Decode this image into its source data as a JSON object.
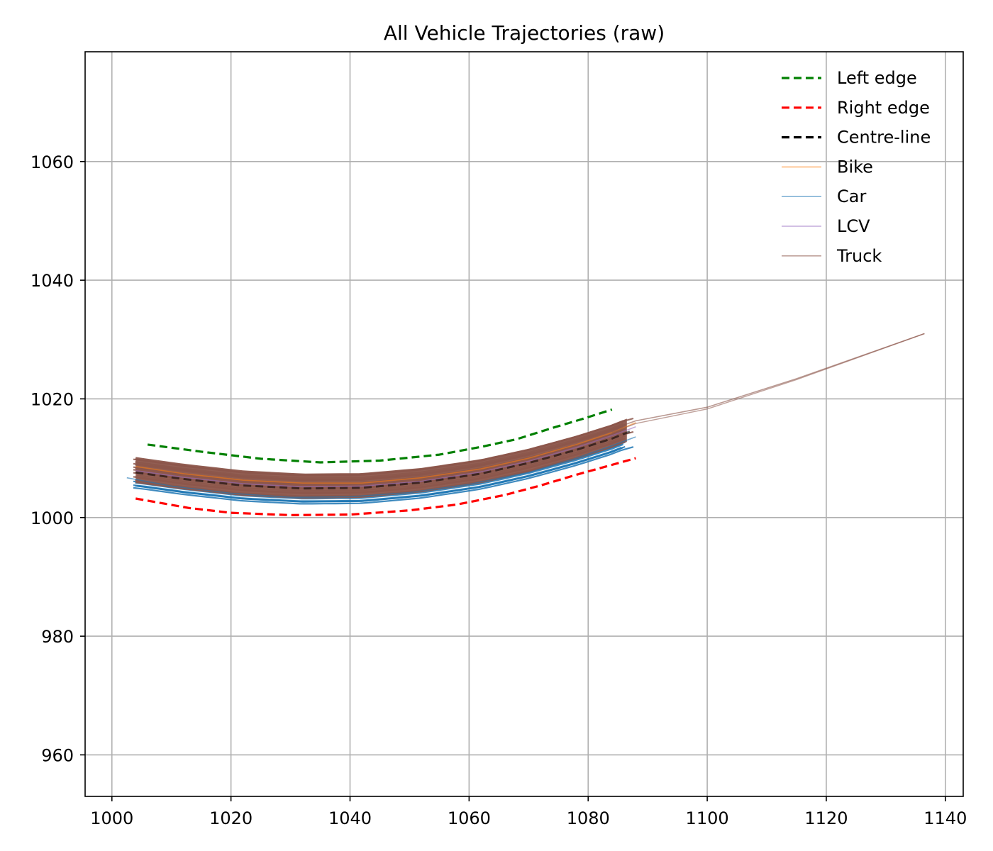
{
  "chart_data": {
    "type": "line",
    "title": "All Vehicle Trajectories (raw)",
    "xlabel": "",
    "ylabel": "",
    "xlim": [
      995.5,
      1143.0
    ],
    "ylim": [
      953.0,
      1078.5
    ],
    "xticks": [
      1000,
      1020,
      1040,
      1060,
      1080,
      1100,
      1120,
      1140
    ],
    "yticks": [
      960,
      980,
      1000,
      1020,
      1040,
      1060
    ],
    "grid": true,
    "legend_position": "top-right",
    "colors": {
      "left_edge": "#008000",
      "right_edge": "#ff0000",
      "centre_line": "#000000",
      "bike": "#ff7f0e",
      "car": "#1f77b4",
      "lcv": "#9467bd",
      "truck": "#8c564b"
    },
    "legend": [
      {
        "label": "Left edge",
        "style": "dashed",
        "color": "#008000"
      },
      {
        "label": "Right edge",
        "style": "dashed",
        "color": "#ff0000"
      },
      {
        "label": "Centre-line",
        "style": "dashed",
        "color": "#000000"
      },
      {
        "label": "Bike",
        "style": "solid",
        "color": "#ff7f0e"
      },
      {
        "label": "Car",
        "style": "solid",
        "color": "#1f77b4"
      },
      {
        "label": "LCV",
        "style": "solid",
        "color": "#9467bd"
      },
      {
        "label": "Truck",
        "style": "solid",
        "color": "#8c564b"
      }
    ],
    "series": [
      {
        "name": "Left edge",
        "x": [
          1006,
          1015,
          1025,
          1035,
          1045,
          1055,
          1062,
          1068,
          1074,
          1079,
          1084
        ],
        "y": [
          1012.3,
          1011.1,
          1009.9,
          1009.3,
          1009.6,
          1010.6,
          1011.9,
          1013.2,
          1015.1,
          1016.6,
          1018.2
        ]
      },
      {
        "name": "Right edge",
        "x": [
          1004,
          1013,
          1020,
          1030,
          1040,
          1050,
          1058,
          1066,
          1072,
          1078,
          1083,
          1088
        ],
        "y": [
          1003.2,
          1001.6,
          1000.8,
          1000.4,
          1000.5,
          1001.2,
          1002.2,
          1003.8,
          1005.4,
          1007.2,
          1008.6,
          1010.0
        ]
      },
      {
        "name": "Centre-line",
        "x": [
          1004,
          1012,
          1022,
          1032,
          1042,
          1052,
          1062,
          1070,
          1078,
          1084,
          1087
        ],
        "y": [
          1007.6,
          1006.5,
          1005.4,
          1004.9,
          1005.0,
          1005.9,
          1007.4,
          1009.2,
          1011.4,
          1013.3,
          1014.5
        ]
      },
      {
        "name": "Bike",
        "x": [
          1004,
          1012,
          1022,
          1032,
          1042,
          1052,
          1062,
          1070,
          1078,
          1084,
          1088
        ],
        "y": [
          1008.6,
          1007.4,
          1006.3,
          1005.8,
          1005.8,
          1006.7,
          1008.2,
          1010.0,
          1012.3,
          1014.3,
          1016.0
        ]
      },
      {
        "name": "Car",
        "x": [
          1002.5,
          1010,
          1020,
          1030,
          1040,
          1050,
          1060,
          1070,
          1078,
          1084,
          1088
        ],
        "y": [
          1006.7,
          1005.3,
          1004.1,
          1003.4,
          1003.5,
          1004.2,
          1005.6,
          1007.6,
          1010.0,
          1012.1,
          1013.6
        ]
      },
      {
        "name": "LCV",
        "x": [
          1004,
          1012,
          1022,
          1032,
          1042,
          1052,
          1062,
          1070,
          1078,
          1084,
          1088
        ],
        "y": [
          1007.9,
          1006.8,
          1005.7,
          1005.2,
          1005.3,
          1006.1,
          1007.7,
          1009.5,
          1011.8,
          1013.8,
          1015.3
        ]
      },
      {
        "name": "Truck",
        "x": [
          1004,
          1012,
          1022,
          1032,
          1042,
          1052,
          1062,
          1070,
          1078,
          1084,
          1088,
          1100,
          1115,
          1136.5
        ],
        "y": [
          1009.4,
          1008.1,
          1007.0,
          1006.3,
          1006.3,
          1007.1,
          1008.7,
          1010.6,
          1012.9,
          1014.9,
          1016.3,
          1018.6,
          1023.4,
          1031.0
        ]
      }
    ]
  }
}
